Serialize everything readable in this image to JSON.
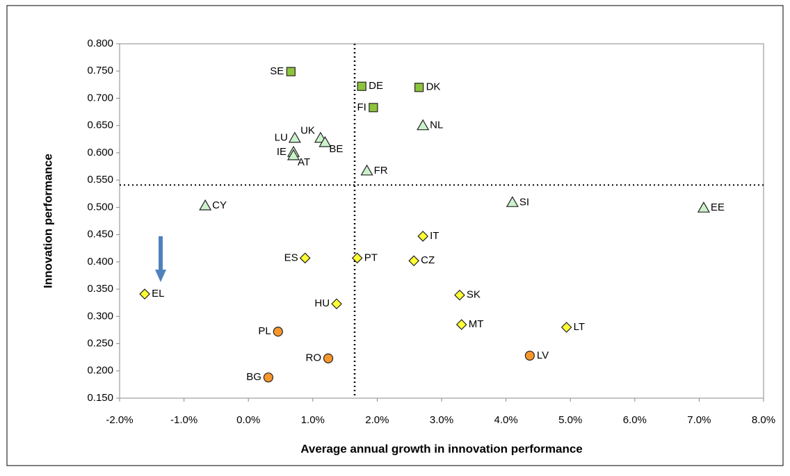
{
  "chart_data": {
    "type": "scatter",
    "xlabel": "Average annual growth in innovation performance",
    "ylabel": "Innovation performance",
    "xlim": [
      -2,
      8
    ],
    "ylim": [
      0.15,
      0.8
    ],
    "xticks": [
      {
        "value": -2,
        "label": "-2.0%"
      },
      {
        "value": -1,
        "label": "-1.0%"
      },
      {
        "value": 0,
        "label": "0.0%"
      },
      {
        "value": 1,
        "label": "1.0%"
      },
      {
        "value": 2,
        "label": "2.0%"
      },
      {
        "value": 3,
        "label": "3.0%"
      },
      {
        "value": 4,
        "label": "4.0%"
      },
      {
        "value": 5,
        "label": "5.0%"
      },
      {
        "value": 6,
        "label": "6.0%"
      },
      {
        "value": 7,
        "label": "7.0%"
      },
      {
        "value": 8,
        "label": "8.0%"
      }
    ],
    "yticks": [
      {
        "value": 0.15,
        "label": "0.150"
      },
      {
        "value": 0.2,
        "label": "0.200"
      },
      {
        "value": 0.25,
        "label": "0.250"
      },
      {
        "value": 0.3,
        "label": "0.300"
      },
      {
        "value": 0.35,
        "label": "0.350"
      },
      {
        "value": 0.4,
        "label": "0.400"
      },
      {
        "value": 0.45,
        "label": "0.450"
      },
      {
        "value": 0.5,
        "label": "0.500"
      },
      {
        "value": 0.55,
        "label": "0.550"
      },
      {
        "value": 0.6,
        "label": "0.600"
      },
      {
        "value": 0.65,
        "label": "0.650"
      },
      {
        "value": 0.7,
        "label": "0.700"
      },
      {
        "value": 0.75,
        "label": "0.750"
      },
      {
        "value": 0.8,
        "label": "0.800"
      }
    ],
    "reference_lines": {
      "x": 1.65,
      "y": 0.541
    },
    "series": [
      {
        "marker": "square",
        "color": "#8cc43c",
        "labels": [
          "SE",
          "DE",
          "DK",
          "FI"
        ],
        "x": [
          0.66,
          1.76,
          2.65,
          1.94
        ],
        "values": [
          0.749,
          0.722,
          0.72,
          0.683
        ]
      },
      {
        "marker": "triangle",
        "color": "#ccf2cc",
        "labels": [
          "NL",
          "LU",
          "UK",
          "BE",
          "IE",
          "AT",
          "FR",
          "CY",
          "SI",
          "EE"
        ],
        "x": [
          2.71,
          0.72,
          1.12,
          1.19,
          0.7,
          0.7,
          1.84,
          -0.67,
          4.1,
          7.07
        ],
        "values": [
          0.65,
          0.627,
          0.627,
          0.619,
          0.601,
          0.595,
          0.567,
          0.503,
          0.509,
          0.499
        ]
      },
      {
        "marker": "diamond",
        "color": "#ffff33",
        "labels": [
          "IT",
          "ES",
          "PT",
          "CZ",
          "EL",
          "SK",
          "HU",
          "MT",
          "LT"
        ],
        "x": [
          2.71,
          0.88,
          1.69,
          2.57,
          -1.61,
          3.28,
          1.37,
          3.31,
          4.94
        ],
        "values": [
          0.447,
          0.407,
          0.407,
          0.402,
          0.341,
          0.339,
          0.323,
          0.285,
          0.28
        ]
      },
      {
        "marker": "circle",
        "color": "#f7962d",
        "labels": [
          "PL",
          "RO",
          "LV",
          "BG"
        ],
        "x": [
          0.46,
          1.24,
          4.37,
          0.31
        ],
        "values": [
          0.272,
          0.223,
          0.228,
          0.188
        ]
      }
    ]
  }
}
